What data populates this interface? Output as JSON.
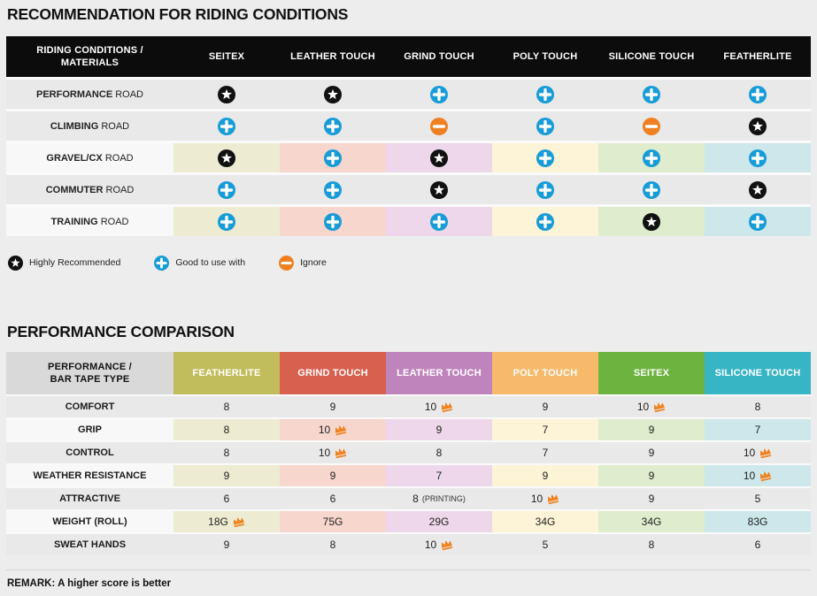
{
  "colors": {
    "page_bg": "#ededee",
    "header1_bg": "#0c0c0c",
    "plain_row": "#e9e9ea",
    "label_cell_tinted": "#f8f8f8",
    "tints": [
      "#edecd2",
      "#f6d6cd",
      "#eed7ea",
      "#fdf3d6",
      "#dfeccd",
      "#cde7ea"
    ],
    "icon_star_bg": "#111111",
    "icon_plus_bg": "#189cd8",
    "icon_minus_bg": "#ef8022",
    "icon_glyph": "#ffffff",
    "crown": "#f0821f"
  },
  "section1": {
    "title": "RECOMMENDATION FOR RIDING CONDITIONS",
    "table": {
      "corner_header": "RIDING CONDITIONS / MATERIALS",
      "columns": [
        "SEITEX",
        "LEATHER TOUCH",
        "GRIND TOUCH",
        "POLY TOUCH",
        "SILICONE TOUCH",
        "FEATHERLITE"
      ],
      "rows": [
        {
          "label_bold": "PERFORMANCE",
          "label_rest": "ROAD",
          "tinted": false,
          "cells": [
            "star",
            "star",
            "plus",
            "plus",
            "plus",
            "plus"
          ]
        },
        {
          "label_bold": "CLIMBING",
          "label_rest": "ROAD",
          "tinted": false,
          "cells": [
            "plus",
            "plus",
            "minus",
            "plus",
            "minus",
            "star"
          ]
        },
        {
          "label_bold": "GRAVEL/CX",
          "label_rest": "ROAD",
          "tinted": true,
          "cells": [
            "star",
            "plus",
            "star",
            "plus",
            "plus",
            "plus"
          ]
        },
        {
          "label_bold": "COMMUTER",
          "label_rest": "ROAD",
          "tinted": false,
          "cells": [
            "plus",
            "plus",
            "star",
            "plus",
            "plus",
            "star"
          ]
        },
        {
          "label_bold": "TRAINING",
          "label_rest": "ROAD",
          "tinted": true,
          "cells": [
            "plus",
            "plus",
            "plus",
            "plus",
            "star",
            "plus"
          ]
        }
      ]
    },
    "legend": [
      {
        "icon": "star",
        "label": "Highly Recommended"
      },
      {
        "icon": "plus",
        "label": "Good to use with"
      },
      {
        "icon": "minus",
        "label": "Ignore"
      }
    ]
  },
  "section2": {
    "title": "PERFORMANCE COMPARISON",
    "table": {
      "corner_header": "PERFORMANCE / BAR TAPE TYPE",
      "columns": [
        {
          "label": "FEATHERLITE",
          "color": "#c1bc5c"
        },
        {
          "label": "GRIND TOUCH",
          "color": "#d8604f"
        },
        {
          "label": "LEATHER TOUCH",
          "color": "#c084bd"
        },
        {
          "label": "POLY TOUCH",
          "color": "#f6ba6a"
        },
        {
          "label": "SEITEX",
          "color": "#6db33f"
        },
        {
          "label": "SILICONE TOUCH",
          "color": "#38b5c4"
        }
      ],
      "rows": [
        {
          "label": "COMFORT",
          "tinted": false,
          "cells": [
            {
              "value": "8"
            },
            {
              "value": "9"
            },
            {
              "value": "10",
              "crown": true
            },
            {
              "value": "9"
            },
            {
              "value": "10",
              "crown": true
            },
            {
              "value": "8"
            }
          ]
        },
        {
          "label": "GRIP",
          "tinted": true,
          "cells": [
            {
              "value": "8"
            },
            {
              "value": "10",
              "crown": true
            },
            {
              "value": "9"
            },
            {
              "value": "7"
            },
            {
              "value": "9"
            },
            {
              "value": "7"
            }
          ]
        },
        {
          "label": "CONTROL",
          "tinted": false,
          "cells": [
            {
              "value": "8"
            },
            {
              "value": "10",
              "crown": true
            },
            {
              "value": "8"
            },
            {
              "value": "7"
            },
            {
              "value": "9"
            },
            {
              "value": "10",
              "crown": true
            }
          ]
        },
        {
          "label": "WEATHER RESISTANCE",
          "tinted": true,
          "cells": [
            {
              "value": "9"
            },
            {
              "value": "9"
            },
            {
              "value": "7"
            },
            {
              "value": "9"
            },
            {
              "value": "9"
            },
            {
              "value": "10",
              "crown": true
            }
          ]
        },
        {
          "label": "ATTRACTIVE",
          "tinted": false,
          "cells": [
            {
              "value": "6"
            },
            {
              "value": "6"
            },
            {
              "value": "8",
              "note": "(PRINTING)"
            },
            {
              "value": "10",
              "crown": true
            },
            {
              "value": "9"
            },
            {
              "value": "5"
            }
          ]
        },
        {
          "label": "WEIGHT (ROLL)",
          "tinted": true,
          "cells": [
            {
              "value": "18G",
              "crown": true
            },
            {
              "value": "75G"
            },
            {
              "value": "29G"
            },
            {
              "value": "34G"
            },
            {
              "value": "34G"
            },
            {
              "value": "83G"
            }
          ]
        },
        {
          "label": "SWEAT HANDS",
          "tinted": false,
          "cells": [
            {
              "value": "9"
            },
            {
              "value": "8"
            },
            {
              "value": "10",
              "crown": true
            },
            {
              "value": "5"
            },
            {
              "value": "8"
            },
            {
              "value": "6"
            }
          ]
        }
      ]
    },
    "remark": "REMARK: A higher score is better"
  },
  "chart_data": [
    {
      "type": "table",
      "title": "RECOMMENDATION FOR RIDING CONDITIONS",
      "row_header": "RIDING CONDITIONS / MATERIALS",
      "columns": [
        "SEITEX",
        "LEATHER TOUCH",
        "GRIND TOUCH",
        "POLY TOUCH",
        "SILICONE TOUCH",
        "FEATHERLITE"
      ],
      "legend": {
        "star": "Highly Recommended",
        "plus": "Good to use with",
        "minus": "Ignore"
      },
      "rows": [
        {
          "condition": "PERFORMANCE ROAD",
          "ratings": [
            "star",
            "star",
            "plus",
            "plus",
            "plus",
            "plus"
          ]
        },
        {
          "condition": "CLIMBING ROAD",
          "ratings": [
            "plus",
            "plus",
            "minus",
            "plus",
            "minus",
            "star"
          ]
        },
        {
          "condition": "GRAVEL/CX ROAD",
          "ratings": [
            "star",
            "plus",
            "star",
            "plus",
            "plus",
            "plus"
          ]
        },
        {
          "condition": "COMMUTER ROAD",
          "ratings": [
            "plus",
            "plus",
            "star",
            "plus",
            "plus",
            "star"
          ]
        },
        {
          "condition": "TRAINING ROAD",
          "ratings": [
            "plus",
            "plus",
            "plus",
            "plus",
            "star",
            "plus"
          ]
        }
      ]
    },
    {
      "type": "table",
      "title": "PERFORMANCE COMPARISON",
      "row_header": "PERFORMANCE / BAR TAPE TYPE",
      "columns": [
        "FEATHERLITE",
        "GRIND TOUCH",
        "LEATHER TOUCH",
        "POLY TOUCH",
        "SEITEX",
        "SILICONE TOUCH"
      ],
      "note": "REMARK: A higher score is better — crown marks best in row",
      "rows": [
        {
          "metric": "COMFORT",
          "values": [
            8,
            9,
            10,
            9,
            10,
            8
          ],
          "best": [
            "LEATHER TOUCH",
            "SEITEX"
          ]
        },
        {
          "metric": "GRIP",
          "values": [
            8,
            10,
            9,
            7,
            9,
            7
          ],
          "best": [
            "GRIND TOUCH"
          ]
        },
        {
          "metric": "CONTROL",
          "values": [
            8,
            10,
            8,
            7,
            9,
            10
          ],
          "best": [
            "GRIND TOUCH",
            "SILICONE TOUCH"
          ]
        },
        {
          "metric": "WEATHER RESISTANCE",
          "values": [
            9,
            9,
            7,
            9,
            9,
            10
          ],
          "best": [
            "SILICONE TOUCH"
          ]
        },
        {
          "metric": "ATTRACTIVE",
          "values": [
            6,
            6,
            "8 (PRINTING)",
            10,
            9,
            5
          ],
          "best": [
            "POLY TOUCH"
          ]
        },
        {
          "metric": "WEIGHT (ROLL)",
          "values": [
            "18G",
            "75G",
            "29G",
            "34G",
            "34G",
            "83G"
          ],
          "best": [
            "FEATHERLITE"
          ]
        },
        {
          "metric": "SWEAT HANDS",
          "values": [
            9,
            8,
            10,
            5,
            8,
            6
          ],
          "best": [
            "LEATHER TOUCH"
          ]
        }
      ]
    }
  ]
}
